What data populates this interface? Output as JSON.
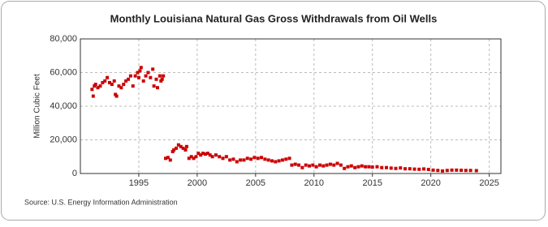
{
  "chart_data": {
    "type": "scatter",
    "title": "Monthly Louisiana Natural Gas Gross Withdrawals from Oil Wells",
    "y_label": "Million Cubic Feet",
    "source": "Source: U.S. Energy Information Administration",
    "color": "#cc0000",
    "grid": true,
    "xlim": [
      1990,
      2026
    ],
    "xticks": [
      1995,
      2000,
      2005,
      2010,
      2015,
      2020,
      2025
    ],
    "ylim": [
      0,
      80000
    ],
    "yticks": [
      {
        "value": 0,
        "label": "0"
      },
      {
        "value": 20000,
        "label": "20,000"
      },
      {
        "value": 40000,
        "label": "40,000"
      },
      {
        "value": 60000,
        "label": "60,000"
      },
      {
        "value": 80000,
        "label": "80,000"
      }
    ],
    "x": [
      1991.0,
      1991.1,
      1991.2,
      1991.3,
      1991.5,
      1991.7,
      1991.9,
      1992.1,
      1992.3,
      1992.5,
      1992.7,
      1992.9,
      1993.0,
      1993.1,
      1993.3,
      1993.5,
      1993.7,
      1993.9,
      1994.1,
      1994.3,
      1994.5,
      1994.7,
      1994.9,
      1995.0,
      1995.1,
      1995.2,
      1995.4,
      1995.6,
      1995.8,
      1996.0,
      1996.2,
      1996.3,
      1996.5,
      1996.6,
      1996.8,
      1996.9,
      1997.0,
      1997.1,
      1997.3,
      1997.5,
      1997.7,
      1997.9,
      1998.0,
      1998.2,
      1998.4,
      1998.6,
      1998.8,
      1999.0,
      1999.1,
      1999.3,
      1999.5,
      1999.7,
      1999.9,
      2000.1,
      2000.3,
      2000.5,
      2000.7,
      2000.9,
      2001.1,
      2001.3,
      2001.6,
      2001.9,
      2002.2,
      2002.5,
      2002.8,
      2003.1,
      2003.4,
      2003.7,
      2004.0,
      2004.3,
      2004.6,
      2004.9,
      2005.2,
      2005.5,
      2005.8,
      2006.1,
      2006.4,
      2006.7,
      2007.0,
      2007.3,
      2007.6,
      2007.9,
      2008.1,
      2008.4,
      2008.7,
      2009.0,
      2009.3,
      2009.6,
      2009.9,
      2010.2,
      2010.5,
      2010.8,
      2011.1,
      2011.4,
      2011.7,
      2012.0,
      2012.3,
      2012.6,
      2012.9,
      2013.2,
      2013.5,
      2013.8,
      2014.1,
      2014.4,
      2014.7,
      2015.0,
      2015.4,
      2015.8,
      2016.2,
      2016.6,
      2017.0,
      2017.4,
      2017.8,
      2018.2,
      2018.6,
      2019.0,
      2019.4,
      2019.8,
      2020.2,
      2020.6,
      2021.0,
      2021.4,
      2021.8,
      2022.2,
      2022.6,
      2023.0,
      2023.4,
      2023.9
    ],
    "values": [
      50000,
      46000,
      52000,
      53000,
      51000,
      52000,
      54000,
      55000,
      57000,
      54000,
      53000,
      55000,
      47000,
      46000,
      52000,
      51000,
      53000,
      55000,
      56000,
      58000,
      52000,
      58000,
      60000,
      57000,
      61000,
      63000,
      55000,
      58000,
      60000,
      57000,
      62000,
      52000,
      56000,
      51000,
      58000,
      55000,
      56000,
      58000,
      9000,
      9500,
      8000,
      13000,
      14000,
      15000,
      17000,
      16000,
      15000,
      14000,
      16000,
      9000,
      10000,
      9000,
      10000,
      12000,
      11000,
      12000,
      11500,
      12000,
      11000,
      10000,
      11000,
      10000,
      9000,
      10000,
      8000,
      8500,
      7000,
      8000,
      8000,
      9000,
      8500,
      9500,
      9000,
      9500,
      8500,
      8000,
      7500,
      7000,
      7500,
      8000,
      8500,
      9000,
      5000,
      5500,
      5000,
      3500,
      5000,
      4500,
      5000,
      4000,
      5000,
      4500,
      5000,
      5500,
      5000,
      6000,
      5000,
      3000,
      4000,
      4500,
      3500,
      4000,
      4500,
      4000,
      4000,
      3800,
      4000,
      3500,
      3500,
      3200,
      3000,
      3300,
      2800,
      2800,
      2600,
      2500,
      2700,
      2400,
      2000,
      1800,
      1500,
      1800,
      2000,
      2000,
      1900,
      1800,
      1800,
      1700
    ]
  }
}
